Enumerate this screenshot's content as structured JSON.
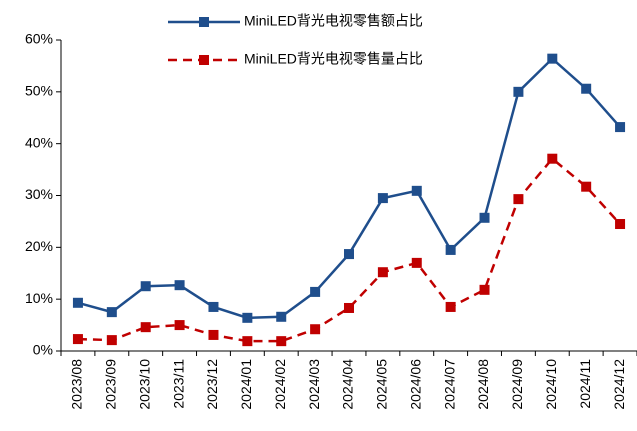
{
  "chart_data": {
    "type": "line",
    "categories": [
      "2023/08",
      "2023/09",
      "2023/10",
      "2023/11",
      "2023/12",
      "2024/01",
      "2024/02",
      "2024/03",
      "2024/04",
      "2024/05",
      "2024/06",
      "2024/07",
      "2024/08",
      "2024/09",
      "2024/10",
      "2024/11",
      "2024/12"
    ],
    "series": [
      {
        "name": "MiniLED背光电视零售额占比",
        "color": "#1f4e8c",
        "line_style": "solid",
        "marker": "square",
        "values": [
          9.3,
          7.5,
          12.5,
          12.7,
          8.5,
          6.4,
          6.6,
          11.4,
          18.7,
          29.5,
          30.9,
          19.5,
          25.7,
          50.0,
          56.4,
          50.6,
          43.2
        ]
      },
      {
        "name": "MiniLED背光电视零售量占比",
        "color": "#c00000",
        "line_style": "dashed",
        "marker": "square",
        "values": [
          2.3,
          2.1,
          4.6,
          5.0,
          3.1,
          1.9,
          1.9,
          4.2,
          8.3,
          15.2,
          17.0,
          8.5,
          11.8,
          29.3,
          37.1,
          31.7,
          24.5
        ]
      }
    ],
    "ylim": [
      0,
      60
    ],
    "yticks": [
      {
        "value": 0,
        "label": "0%"
      },
      {
        "value": 10,
        "label": "10%"
      },
      {
        "value": 20,
        "label": "20%"
      },
      {
        "value": 30,
        "label": "30%"
      },
      {
        "value": 40,
        "label": "40%"
      },
      {
        "value": 50,
        "label": "50%"
      },
      {
        "value": 60,
        "label": "60%"
      }
    ],
    "grid": false,
    "legend": "top"
  }
}
